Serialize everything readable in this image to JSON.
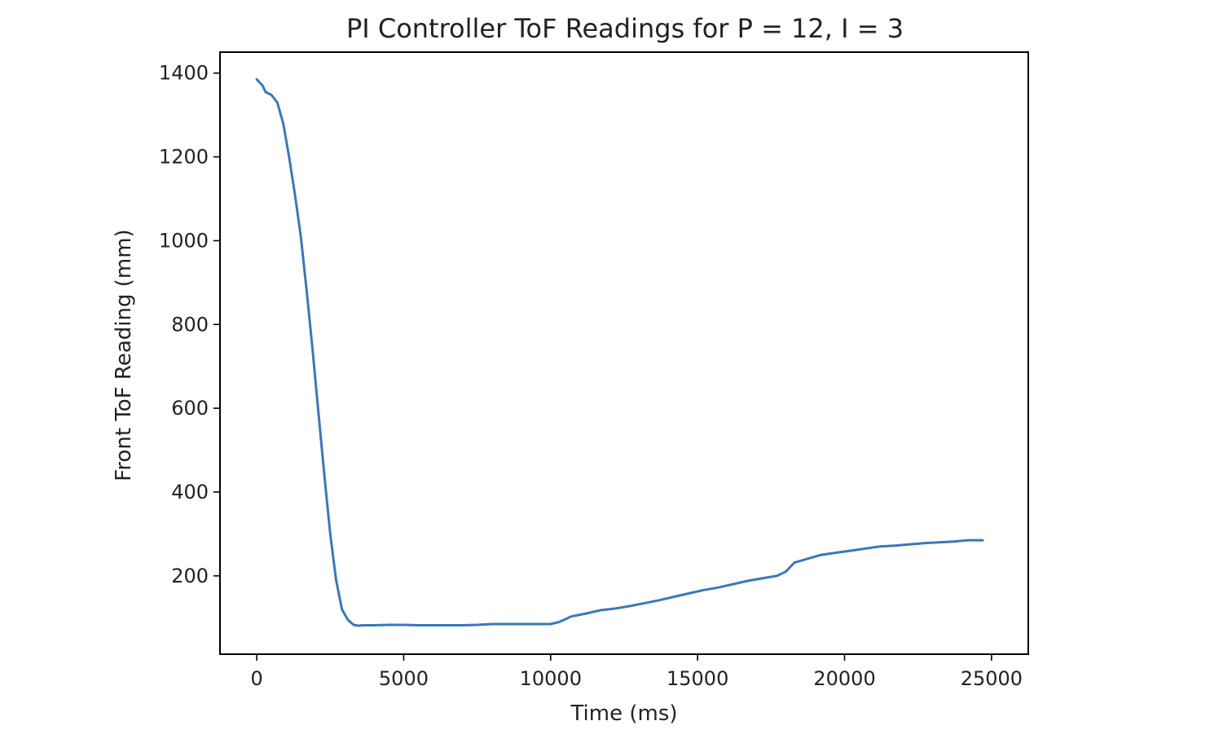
{
  "chart_data": {
    "type": "line",
    "title": "PI Controller ToF Readings for P = 12, I = 3",
    "xlabel": "Time (ms)",
    "ylabel": "Front ToF Reading (mm)",
    "xlim": [
      -1250,
      26250
    ],
    "ylim": [
      13,
      1450
    ],
    "xticks": [
      0,
      5000,
      10000,
      15000,
      20000,
      25000
    ],
    "yticks": [
      200,
      400,
      600,
      800,
      1000,
      1200,
      1400
    ],
    "grid": false,
    "legend": "none",
    "series": [
      {
        "color": "#3a78b5",
        "x": [
          0,
          200,
          300,
          500,
          700,
          900,
          1100,
          1300,
          1500,
          1700,
          1900,
          2100,
          2300,
          2500,
          2700,
          2900,
          3100,
          3300,
          3450,
          3600,
          4000,
          4500,
          5000,
          5500,
          6000,
          6500,
          7000,
          7500,
          8000,
          8500,
          9000,
          9500,
          10000,
          10300,
          10700,
          11200,
          11700,
          12200,
          12700,
          13200,
          13700,
          14200,
          14700,
          15200,
          15700,
          16200,
          16700,
          17200,
          17700,
          18000,
          18300,
          18700,
          19200,
          19700,
          20200,
          20700,
          21200,
          21700,
          22200,
          22700,
          23200,
          23700,
          24200,
          24700
        ],
        "y": [
          1385,
          1370,
          1355,
          1348,
          1330,
          1280,
          1200,
          1110,
          1010,
          880,
          740,
          590,
          440,
          300,
          190,
          120,
          95,
          83,
          81,
          82,
          82,
          83,
          83,
          82,
          82,
          82,
          82,
          83,
          85,
          85,
          85,
          85,
          85,
          90,
          103,
          110,
          118,
          122,
          128,
          135,
          142,
          150,
          158,
          166,
          172,
          180,
          188,
          194,
          200,
          210,
          232,
          240,
          250,
          255,
          260,
          265,
          270,
          272,
          275,
          278,
          280,
          282,
          285,
          285
        ]
      }
    ]
  }
}
